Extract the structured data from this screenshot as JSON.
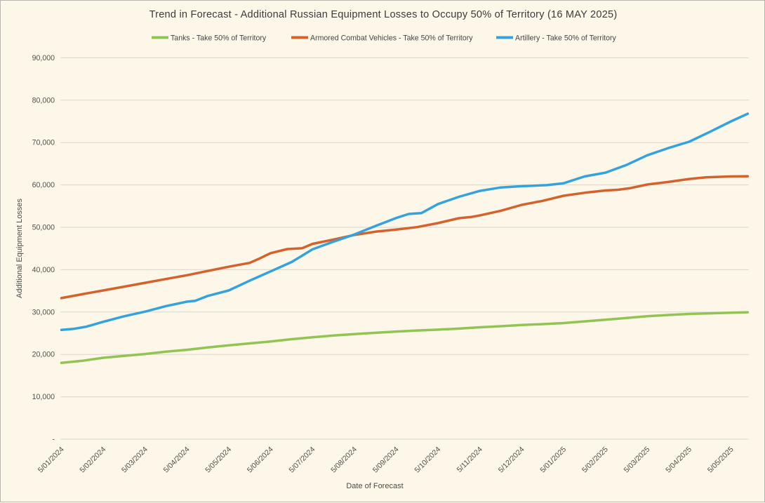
{
  "colors": {
    "background": "#fdf7ea",
    "gridline": "#d9d6cf",
    "frame_border": "#b8b5ae",
    "title_text": "#3b3b3b",
    "tick_text": "#524f4a",
    "tanks_green": "#92c353",
    "acv_orange": "#d4622d",
    "artillery_blue": "#36a2db"
  },
  "chart_data": {
    "type": "line",
    "title": "Trend in Forecast - Additional Russian Equipment Losses to Occupy 50% of Territory (16 MAY 2025)",
    "xlabel": "Date of Forecast",
    "ylabel": "Additional Equipment Losses",
    "legend_position": "top",
    "grid": true,
    "ylim": [
      0,
      90000
    ],
    "ytick_values": [
      0,
      10000,
      20000,
      30000,
      40000,
      50000,
      60000,
      70000,
      80000,
      90000
    ],
    "ytick_labels": [
      "-",
      "10,000",
      "20,000",
      "30,000",
      "40,000",
      "50,000",
      "60,000",
      "70,000",
      "80,000",
      "90,000"
    ],
    "x_tick_labels": [
      "5/01/2024",
      "5/02/2024",
      "5/03/2024",
      "5/04/2024",
      "5/05/2024",
      "5/06/2024",
      "5/07/2024",
      "5/08/2024",
      "5/09/2024",
      "5/10/2024",
      "5/11/2024",
      "5/12/2024",
      "5/01/2025",
      "5/02/2025",
      "5/03/2025",
      "5/04/2025",
      "5/05/2025"
    ],
    "x_note": "series x values are month indexes: 0 = 5/01/2024 tick, 16 = 5/05/2025 tick, 16.4 = forecast end 16 MAY 2025",
    "series": [
      {
        "name": "Tanks - Take 50% of Territory",
        "color": "#92c353",
        "points": [
          [
            0,
            18000
          ],
          [
            0.5,
            18500
          ],
          [
            1,
            19200
          ],
          [
            1.5,
            19650
          ],
          [
            2,
            20100
          ],
          [
            2.5,
            20650
          ],
          [
            3,
            21100
          ],
          [
            3.5,
            21650
          ],
          [
            4,
            22150
          ],
          [
            4.5,
            22600
          ],
          [
            5,
            23050
          ],
          [
            5.5,
            23600
          ],
          [
            6,
            24050
          ],
          [
            6.5,
            24450
          ],
          [
            7,
            24800
          ],
          [
            7.5,
            25100
          ],
          [
            8,
            25400
          ],
          [
            8.5,
            25650
          ],
          [
            9,
            25850
          ],
          [
            9.5,
            26100
          ],
          [
            10,
            26400
          ],
          [
            10.5,
            26650
          ],
          [
            11,
            26950
          ],
          [
            11.5,
            27150
          ],
          [
            12,
            27400
          ],
          [
            12.5,
            27800
          ],
          [
            13,
            28200
          ],
          [
            13.5,
            28600
          ],
          [
            14,
            29000
          ],
          [
            14.5,
            29300
          ],
          [
            15,
            29550
          ],
          [
            15.5,
            29700
          ],
          [
            16,
            29850
          ],
          [
            16.4,
            29950
          ]
        ]
      },
      {
        "name": "Armored Combat Vehicles - Take 50% of Territory",
        "color": "#d4622d",
        "points": [
          [
            0,
            33300
          ],
          [
            0.5,
            34200
          ],
          [
            1,
            35100
          ],
          [
            1.5,
            36000
          ],
          [
            2,
            36900
          ],
          [
            2.5,
            37800
          ],
          [
            3,
            38700
          ],
          [
            3.5,
            39700
          ],
          [
            4,
            40700
          ],
          [
            4.5,
            41600
          ],
          [
            4.75,
            42700
          ],
          [
            5,
            43900
          ],
          [
            5.4,
            44870
          ],
          [
            5.75,
            45050
          ],
          [
            6,
            46100
          ],
          [
            6.5,
            47100
          ],
          [
            7,
            48200
          ],
          [
            7.5,
            48950
          ],
          [
            8,
            49450
          ],
          [
            8.5,
            50050
          ],
          [
            9,
            51000
          ],
          [
            9.5,
            52150
          ],
          [
            9.8,
            52450
          ],
          [
            10,
            52800
          ],
          [
            10.5,
            53900
          ],
          [
            11,
            55300
          ],
          [
            11.5,
            56250
          ],
          [
            12,
            57450
          ],
          [
            12.5,
            58150
          ],
          [
            13,
            58700
          ],
          [
            13.3,
            58850
          ],
          [
            13.6,
            59250
          ],
          [
            14,
            60100
          ],
          [
            14.5,
            60700
          ],
          [
            15,
            61400
          ],
          [
            15.4,
            61800
          ],
          [
            16,
            62000
          ],
          [
            16.4,
            62050
          ]
        ]
      },
      {
        "name": "Artillery - Take 50% of Territory",
        "color": "#36a2db",
        "points": [
          [
            0,
            25800
          ],
          [
            0.3,
            26050
          ],
          [
            0.6,
            26550
          ],
          [
            1,
            27700
          ],
          [
            1.5,
            29000
          ],
          [
            2,
            30100
          ],
          [
            2.5,
            31400
          ],
          [
            3,
            32450
          ],
          [
            3.2,
            32650
          ],
          [
            3.5,
            33800
          ],
          [
            4,
            35100
          ],
          [
            4.5,
            37400
          ],
          [
            5,
            39600
          ],
          [
            5.5,
            41800
          ],
          [
            5.75,
            43300
          ],
          [
            6,
            44800
          ],
          [
            6.5,
            46600
          ],
          [
            7,
            48300
          ],
          [
            7.5,
            50300
          ],
          [
            8,
            52200
          ],
          [
            8.3,
            53150
          ],
          [
            8.6,
            53350
          ],
          [
            9,
            55500
          ],
          [
            9.5,
            57200
          ],
          [
            10,
            58600
          ],
          [
            10.5,
            59400
          ],
          [
            11,
            59700
          ],
          [
            11.6,
            59950
          ],
          [
            12,
            60400
          ],
          [
            12.5,
            62000
          ],
          [
            13,
            62900
          ],
          [
            13.5,
            64700
          ],
          [
            14,
            67000
          ],
          [
            14.5,
            68700
          ],
          [
            15,
            70200
          ],
          [
            15.5,
            72550
          ],
          [
            16,
            75000
          ],
          [
            16.4,
            76800
          ]
        ]
      }
    ]
  }
}
